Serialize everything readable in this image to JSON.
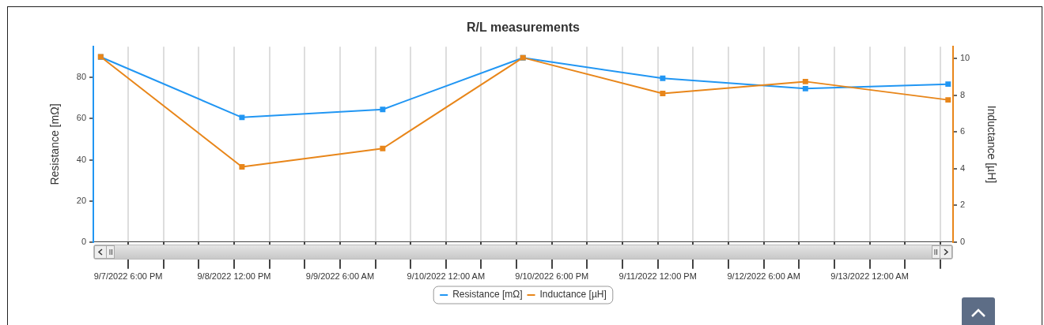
{
  "chart_data": {
    "type": "line",
    "title": "R/L measurements",
    "x": [
      "2022-09-07T13:20",
      "2022-09-08T13:20",
      "2022-09-09T13:15",
      "2022-09-10T13:05",
      "2022-09-11T12:50",
      "2022-09-12T13:05",
      "2022-09-13T13:20"
    ],
    "series": [
      {
        "name": "Resistance [mΩ]",
        "color": "#2196f3",
        "values": [
          90,
          60.6,
          64.5,
          89.6,
          79.6,
          74.6,
          76.8
        ]
      },
      {
        "name": "Inductance [µH]",
        "color": "#e8861a",
        "axis": "y2",
        "values": [
          10.1,
          4.1,
          5.1,
          10.05,
          8.1,
          8.75,
          7.75
        ]
      }
    ],
    "ylabel": "Resistance [mΩ]",
    "y2label": "Inductance [µH]",
    "xlim": [
      "2022-09-07T12:05",
      "2022-09-13T14:10"
    ],
    "xticks": [
      {
        "value": "2022-09-07T18:00",
        "label": "9/7/2022 6:00 PM"
      },
      {
        "value": "2022-09-08T00:00",
        "label": null
      },
      {
        "value": "2022-09-08T06:00",
        "label": null
      },
      {
        "value": "2022-09-08T12:00",
        "label": "9/8/2022 12:00 PM"
      },
      {
        "value": "2022-09-08T18:00",
        "label": null
      },
      {
        "value": "2022-09-09T00:00",
        "label": null
      },
      {
        "value": "2022-09-09T06:00",
        "label": "9/9/2022 6:00 AM"
      },
      {
        "value": "2022-09-09T12:00",
        "label": null
      },
      {
        "value": "2022-09-09T18:00",
        "label": null
      },
      {
        "value": "2022-09-10T00:00",
        "label": "9/10/2022 12:00 AM"
      },
      {
        "value": "2022-09-10T06:00",
        "label": null
      },
      {
        "value": "2022-09-10T12:00",
        "label": null
      },
      {
        "value": "2022-09-10T18:00",
        "label": "9/10/2022 6:00 PM"
      },
      {
        "value": "2022-09-11T00:00",
        "label": null
      },
      {
        "value": "2022-09-11T06:00",
        "label": null
      },
      {
        "value": "2022-09-11T12:00",
        "label": "9/11/2022 12:00 PM"
      },
      {
        "value": "2022-09-11T18:00",
        "label": null
      },
      {
        "value": "2022-09-12T00:00",
        "label": null
      },
      {
        "value": "2022-09-12T06:00",
        "label": "9/12/2022 6:00 AM"
      },
      {
        "value": "2022-09-12T12:00",
        "label": null
      },
      {
        "value": "2022-09-12T18:00",
        "label": null
      },
      {
        "value": "2022-09-13T00:00",
        "label": "9/13/2022 12:00 AM"
      },
      {
        "value": "2022-09-13T06:00",
        "label": null
      },
      {
        "value": "2022-09-13T12:00",
        "label": null
      }
    ],
    "ylim": [
      0,
      95
    ],
    "yticks": [
      0,
      20,
      40,
      60,
      80
    ],
    "y2lim": [
      0,
      10.65
    ],
    "y2ticks": [
      0,
      2,
      4,
      6,
      8,
      10
    ],
    "grid": "x",
    "legend": "bottom",
    "marker": "square",
    "line_style": "solid"
  }
}
